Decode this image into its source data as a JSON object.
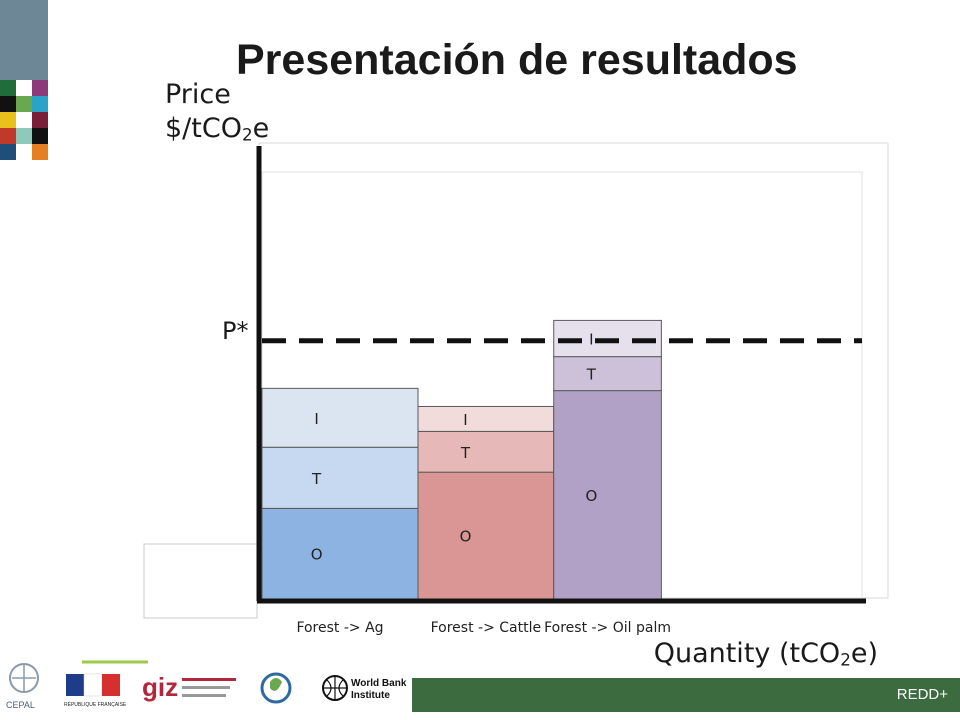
{
  "slide": {
    "title": "Presentación de resultados",
    "footer_label": "REDD+"
  },
  "logos": {
    "giz_text": "giz",
    "wbi_line1": "World Bank",
    "wbi_line2": "Institute",
    "cepal_text": "CEPAL",
    "france_text": "RÉPUBLIQUE FRANÇAISE"
  },
  "colors": {
    "ag": [
      "#8db3e2",
      "#c6d9f0",
      "#dbe5f1"
    ],
    "cattle": [
      "#d99694",
      "#e6b9b8",
      "#f2dcdb"
    ],
    "oilpalm": [
      "#b2a1c7",
      "#ccc1d9",
      "#e5e0ec"
    ],
    "footer": "#3b6b3f"
  },
  "chart_data": {
    "type": "bar",
    "stacked": true,
    "variable_width": true,
    "title": "Presentación de resultados",
    "ylabel_line1": "Price",
    "ylabel_line2_pre": "$/tCO",
    "ylabel_line2_sub": "2",
    "ylabel_line2_post": "e",
    "xlabel_pre": "Quantity (tCO",
    "xlabel_sub": "2",
    "xlabel_post": "e)",
    "price_line_label": "P*",
    "price_line_value": 0.57,
    "ylim": [
      0,
      1
    ],
    "categories": [
      "Forest -> Ag",
      "Forest -> Cattle",
      "Forest -> Oil palm"
    ],
    "widths": [
      1,
      0.87,
      0.69
    ],
    "series": [
      {
        "name": "O",
        "values": [
          0.2,
          0.28,
          0.46
        ]
      },
      {
        "name": "T",
        "values": [
          0.135,
          0.09,
          0.075
        ]
      },
      {
        "name": "I",
        "values": [
          0.13,
          0.055,
          0.08
        ]
      }
    ]
  }
}
